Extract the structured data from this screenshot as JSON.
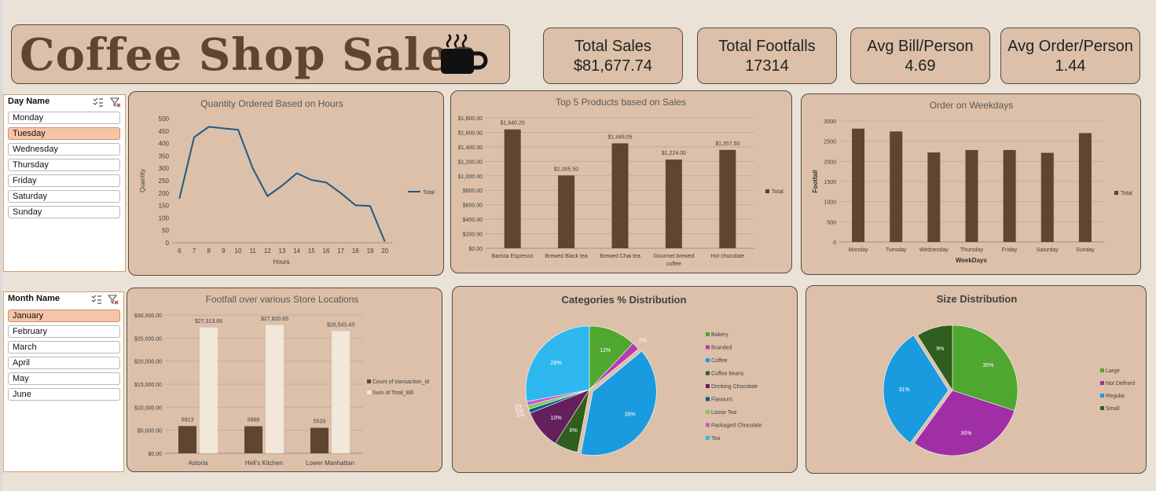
{
  "title": "Coffee Shop Sales",
  "kpis": [
    {
      "label": "Total Sales",
      "value": "$81,677.74"
    },
    {
      "label": "Total Footfalls",
      "value": "17314"
    },
    {
      "label": "Avg Bill/Person",
      "value": "4.69"
    },
    {
      "label": "Avg Order/Person",
      "value": "1.44"
    }
  ],
  "slicers": {
    "day": {
      "header": "Day Name",
      "items": [
        "Monday",
        "Tuesday",
        "Wednesday",
        "Thursday",
        "Friday",
        "Saturday",
        "Sunday"
      ],
      "selected": "Tuesday"
    },
    "month": {
      "header": "Month Name",
      "items": [
        "January",
        "February",
        "March",
        "April",
        "May",
        "June"
      ],
      "selected": "January"
    }
  },
  "colors": {
    "bar": "#5e4630",
    "bar_light": "#f1e7da",
    "line": "#1f5a84",
    "panel": "#dcc0a9",
    "page": "#eae2d6"
  },
  "chart_data": [
    {
      "id": "hours",
      "type": "line",
      "title": "Quantity Ordered Based on Hours",
      "xlabel": "Hours",
      "ylabel": "Quantity",
      "x": [
        6,
        7,
        8,
        9,
        10,
        11,
        12,
        13,
        14,
        15,
        16,
        17,
        18,
        19,
        20
      ],
      "series": [
        {
          "name": "Total",
          "values": [
            178,
            425,
            467,
            461,
            455,
            300,
            188,
            230,
            280,
            253,
            243,
            200,
            151,
            148,
            5
          ]
        }
      ],
      "ylim": [
        0,
        500
      ],
      "yticks": [
        "0",
        "50",
        "100",
        "150",
        "200",
        "250",
        "300",
        "350",
        "400",
        "450",
        "500"
      ],
      "legend": "right"
    },
    {
      "id": "products",
      "type": "bar",
      "title": "Top 5 Products based on Sales",
      "categories": [
        "Barista Espresso",
        "Brewed Black tea",
        "Brewed Chai tea",
        "Gourmet brewed coffee",
        "Hot chocolate"
      ],
      "series": [
        {
          "name": "Total",
          "values": [
            1640.2,
            1005.5,
            1448.05,
            1224.0,
            1357.5
          ]
        }
      ],
      "data_labels": [
        "$1,640.20",
        "$1,005.50",
        "$1,448.05",
        "$1,224.00",
        "$1,357.50"
      ],
      "ylim": [
        0,
        1800
      ],
      "yticks": [
        "$0.00",
        "$200.00",
        "$400.00",
        "$600.00",
        "$800.00",
        "$1,000.00",
        "$1,200.00",
        "$1,400.00",
        "$1,600.00",
        "$1,800.00"
      ],
      "legend": "right"
    },
    {
      "id": "weekdays",
      "type": "bar",
      "title": "Order on Weekdays",
      "xlabel": "WeekDays",
      "ylabel": "Footfall",
      "categories": [
        "Monday",
        "Tuesday",
        "Wednesday",
        "Thursday",
        "Friday",
        "Saturday",
        "Sunday"
      ],
      "series": [
        {
          "name": "Total",
          "values": [
            2810,
            2740,
            2220,
            2280,
            2280,
            2210,
            2700
          ]
        }
      ],
      "ylim": [
        0,
        3000
      ],
      "yticks": [
        "0",
        "500",
        "1000",
        "1500",
        "2000",
        "2500",
        "3000"
      ],
      "legend": "right"
    },
    {
      "id": "locations",
      "type": "bar",
      "title": "Footfall over various Store Locations",
      "categories": [
        "Astoria",
        "Hell's Kitchen",
        "Lower Manhattan"
      ],
      "series": [
        {
          "name": "Count of transaction_id",
          "values": [
            5913,
            5868,
            5533
          ],
          "labels": [
            "5913",
            "5868",
            "5533"
          ]
        },
        {
          "name": "Sum of Total_Bill",
          "values": [
            27313.66,
            27820.65,
            26543.43
          ],
          "labels": [
            "$27,313.66",
            "$27,820.65",
            "$26,543.43"
          ]
        }
      ],
      "ylim": [
        0,
        30000
      ],
      "yticks": [
        "$0.00",
        "$5,000.00",
        "$10,000.00",
        "$15,000.00",
        "$20,000.00",
        "$25,000.00",
        "$30,000.00"
      ],
      "legend": "right"
    },
    {
      "id": "categories",
      "type": "pie",
      "title": "Categories % Distribution",
      "slices": [
        {
          "name": "Bakery",
          "value": 12,
          "label": "12%",
          "color": "#4ea72e"
        },
        {
          "name": "Branded",
          "value": 2,
          "label": "2%",
          "color": "#b73bb0"
        },
        {
          "name": "Coffee",
          "value": 39,
          "label": "39%",
          "color": "#1a9be0"
        },
        {
          "name": "Coffee beans",
          "value": 6,
          "label": "6%",
          "color": "#2f5e1e"
        },
        {
          "name": "Drinking Chocolate",
          "value": 10,
          "label": "10%",
          "color": "#641f5c"
        },
        {
          "name": "Flavours",
          "value": 1,
          "label": "1%",
          "color": "#0b5a86"
        },
        {
          "name": "Loose Tea",
          "value": 1,
          "label": "1%",
          "color": "#7acb5b"
        },
        {
          "name": "Packaged Chocolate",
          "value": 1,
          "label": "1%",
          "color": "#cc55c4"
        },
        {
          "name": "Tea",
          "value": 28,
          "label": "28%",
          "color": "#2fb8f0"
        }
      ]
    },
    {
      "id": "sizes",
      "type": "pie",
      "title": "Size Distribution",
      "slices": [
        {
          "name": "Large",
          "value": 30,
          "label": "30%",
          "color": "#4ea72e"
        },
        {
          "name": "Not Defined",
          "value": 30,
          "label": "30%",
          "color": "#a02fa5"
        },
        {
          "name": "Regular",
          "value": 31,
          "label": "31%",
          "color": "#1a9be0"
        },
        {
          "name": "Small",
          "value": 9,
          "label": "9%",
          "color": "#2f5e1e"
        }
      ]
    }
  ]
}
